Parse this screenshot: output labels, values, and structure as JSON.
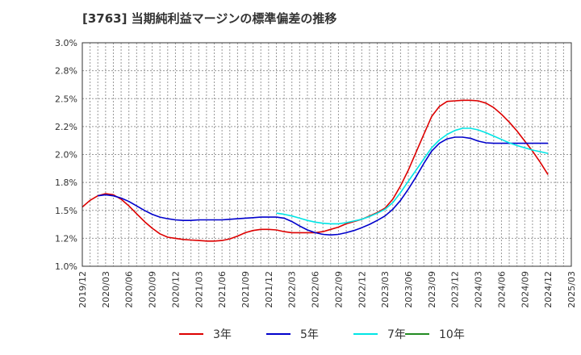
{
  "chart_data": {
    "type": "line",
    "title": "[3763]  当期純利益マージンの標準偏差の推移",
    "xlabel": "",
    "ylabel": "",
    "ylim": [
      1.0,
      3.0
    ],
    "y_ticks": [
      "1.0%",
      "1.2%",
      "1.5%",
      "1.8%",
      "2.0%",
      "2.2%",
      "2.5%",
      "2.8%",
      "3.0%"
    ],
    "x_ticks": [
      "2019/12",
      "2020/03",
      "2020/06",
      "2020/09",
      "2020/12",
      "2021/03",
      "2021/06",
      "2021/09",
      "2021/12",
      "2022/03",
      "2022/06",
      "2022/09",
      "2022/12",
      "2023/03",
      "2023/06",
      "2023/09",
      "2023/12",
      "2024/03",
      "2024/06",
      "2024/09",
      "2024/12",
      "2025/03"
    ],
    "grid": true,
    "legend": "bottom",
    "series": [
      {
        "name": "3年",
        "color": "#dd0000",
        "values": [
          [
            "2019/12",
            1.53
          ],
          [
            "2020/01",
            1.59
          ],
          [
            "2020/02",
            1.63
          ],
          [
            "2020/03",
            1.65
          ],
          [
            "2020/04",
            1.64
          ],
          [
            "2020/05",
            1.6
          ],
          [
            "2020/06",
            1.54
          ],
          [
            "2020/07",
            1.47
          ],
          [
            "2020/08",
            1.4
          ],
          [
            "2020/09",
            1.34
          ],
          [
            "2020/10",
            1.29
          ],
          [
            "2020/11",
            1.26
          ],
          [
            "2020/12",
            1.25
          ],
          [
            "2021/01",
            1.24
          ],
          [
            "2021/02",
            1.235
          ],
          [
            "2021/03",
            1.23
          ],
          [
            "2021/04",
            1.225
          ],
          [
            "2021/05",
            1.225
          ],
          [
            "2021/06",
            1.23
          ],
          [
            "2021/07",
            1.245
          ],
          [
            "2021/08",
            1.27
          ],
          [
            "2021/09",
            1.3
          ],
          [
            "2021/10",
            1.32
          ],
          [
            "2021/11",
            1.33
          ],
          [
            "2021/12",
            1.33
          ],
          [
            "2022/01",
            1.325
          ],
          [
            "2022/02",
            1.31
          ],
          [
            "2022/03",
            1.3
          ],
          [
            "2022/04",
            1.3
          ],
          [
            "2022/05",
            1.3
          ],
          [
            "2022/06",
            1.3
          ],
          [
            "2022/07",
            1.31
          ],
          [
            "2022/08",
            1.33
          ],
          [
            "2022/09",
            1.35
          ],
          [
            "2022/10",
            1.38
          ],
          [
            "2022/11",
            1.4
          ],
          [
            "2022/12",
            1.42
          ],
          [
            "2023/01",
            1.45
          ],
          [
            "2023/02",
            1.48
          ],
          [
            "2023/03",
            1.52
          ],
          [
            "2023/04",
            1.6
          ],
          [
            "2023/05",
            1.72
          ],
          [
            "2023/06",
            1.86
          ],
          [
            "2023/07",
            2.02
          ],
          [
            "2023/08",
            2.18
          ],
          [
            "2023/09",
            2.34
          ],
          [
            "2023/10",
            2.43
          ],
          [
            "2023/11",
            2.475
          ],
          [
            "2023/12",
            2.48
          ],
          [
            "2024/01",
            2.485
          ],
          [
            "2024/02",
            2.485
          ],
          [
            "2024/03",
            2.48
          ],
          [
            "2024/04",
            2.46
          ],
          [
            "2024/05",
            2.42
          ],
          [
            "2024/06",
            2.36
          ],
          [
            "2024/07",
            2.29
          ],
          [
            "2024/08",
            2.21
          ],
          [
            "2024/09",
            2.12
          ],
          [
            "2024/10",
            2.03
          ],
          [
            "2024/11",
            1.93
          ],
          [
            "2024/12",
            1.82
          ]
        ]
      },
      {
        "name": "5年",
        "color": "#0000cc",
        "values": [
          [
            "2020/02",
            1.63
          ],
          [
            "2020/03",
            1.64
          ],
          [
            "2020/04",
            1.63
          ],
          [
            "2020/05",
            1.61
          ],
          [
            "2020/06",
            1.58
          ],
          [
            "2020/07",
            1.54
          ],
          [
            "2020/08",
            1.5
          ],
          [
            "2020/09",
            1.465
          ],
          [
            "2020/10",
            1.44
          ],
          [
            "2020/11",
            1.425
          ],
          [
            "2020/12",
            1.415
          ],
          [
            "2021/01",
            1.41
          ],
          [
            "2021/02",
            1.41
          ],
          [
            "2021/03",
            1.415
          ],
          [
            "2021/04",
            1.415
          ],
          [
            "2021/05",
            1.415
          ],
          [
            "2021/06",
            1.415
          ],
          [
            "2021/07",
            1.42
          ],
          [
            "2021/08",
            1.425
          ],
          [
            "2021/09",
            1.43
          ],
          [
            "2021/10",
            1.435
          ],
          [
            "2021/11",
            1.44
          ],
          [
            "2021/12",
            1.44
          ],
          [
            "2022/01",
            1.44
          ],
          [
            "2022/02",
            1.43
          ],
          [
            "2022/03",
            1.4
          ],
          [
            "2022/04",
            1.36
          ],
          [
            "2022/05",
            1.325
          ],
          [
            "2022/06",
            1.3
          ],
          [
            "2022/07",
            1.285
          ],
          [
            "2022/08",
            1.28
          ],
          [
            "2022/09",
            1.285
          ],
          [
            "2022/10",
            1.3
          ],
          [
            "2022/11",
            1.32
          ],
          [
            "2022/12",
            1.345
          ],
          [
            "2023/01",
            1.375
          ],
          [
            "2023/02",
            1.41
          ],
          [
            "2023/03",
            1.45
          ],
          [
            "2023/04",
            1.51
          ],
          [
            "2023/05",
            1.59
          ],
          [
            "2023/06",
            1.69
          ],
          [
            "2023/07",
            1.8
          ],
          [
            "2023/08",
            1.92
          ],
          [
            "2023/09",
            2.03
          ],
          [
            "2023/10",
            2.1
          ],
          [
            "2023/11",
            2.14
          ],
          [
            "2023/12",
            2.155
          ],
          [
            "2024/01",
            2.155
          ],
          [
            "2024/02",
            2.145
          ],
          [
            "2024/03",
            2.12
          ],
          [
            "2024/04",
            2.105
          ],
          [
            "2024/05",
            2.1
          ],
          [
            "2024/06",
            2.1
          ],
          [
            "2024/07",
            2.1
          ],
          [
            "2024/08",
            2.1
          ],
          [
            "2024/09",
            2.1
          ],
          [
            "2024/10",
            2.1
          ],
          [
            "2024/11",
            2.1
          ],
          [
            "2024/12",
            2.1
          ]
        ]
      },
      {
        "name": "7年",
        "color": "#00e5e5",
        "values": [
          [
            "2022/01",
            1.475
          ],
          [
            "2022/02",
            1.465
          ],
          [
            "2022/03",
            1.45
          ],
          [
            "2022/04",
            1.43
          ],
          [
            "2022/05",
            1.41
          ],
          [
            "2022/06",
            1.395
          ],
          [
            "2022/07",
            1.385
          ],
          [
            "2022/08",
            1.38
          ],
          [
            "2022/09",
            1.38
          ],
          [
            "2022/10",
            1.39
          ],
          [
            "2022/11",
            1.405
          ],
          [
            "2022/12",
            1.42
          ],
          [
            "2023/01",
            1.445
          ],
          [
            "2023/02",
            1.475
          ],
          [
            "2023/03",
            1.51
          ],
          [
            "2023/04",
            1.57
          ],
          [
            "2023/05",
            1.66
          ],
          [
            "2023/06",
            1.76
          ],
          [
            "2023/07",
            1.86
          ],
          [
            "2023/08",
            1.96
          ],
          [
            "2023/09",
            2.06
          ],
          [
            "2023/10",
            2.13
          ],
          [
            "2023/11",
            2.18
          ],
          [
            "2023/12",
            2.215
          ],
          [
            "2024/01",
            2.235
          ],
          [
            "2024/02",
            2.235
          ],
          [
            "2024/03",
            2.22
          ],
          [
            "2024/04",
            2.195
          ],
          [
            "2024/05",
            2.165
          ],
          [
            "2024/06",
            2.135
          ],
          [
            "2024/07",
            2.105
          ],
          [
            "2024/08",
            2.08
          ],
          [
            "2024/09",
            2.06
          ],
          [
            "2024/10",
            2.04
          ],
          [
            "2024/11",
            2.025
          ],
          [
            "2024/12",
            2.01
          ]
        ]
      },
      {
        "name": "10年",
        "color": "#228b22",
        "values": []
      }
    ]
  }
}
